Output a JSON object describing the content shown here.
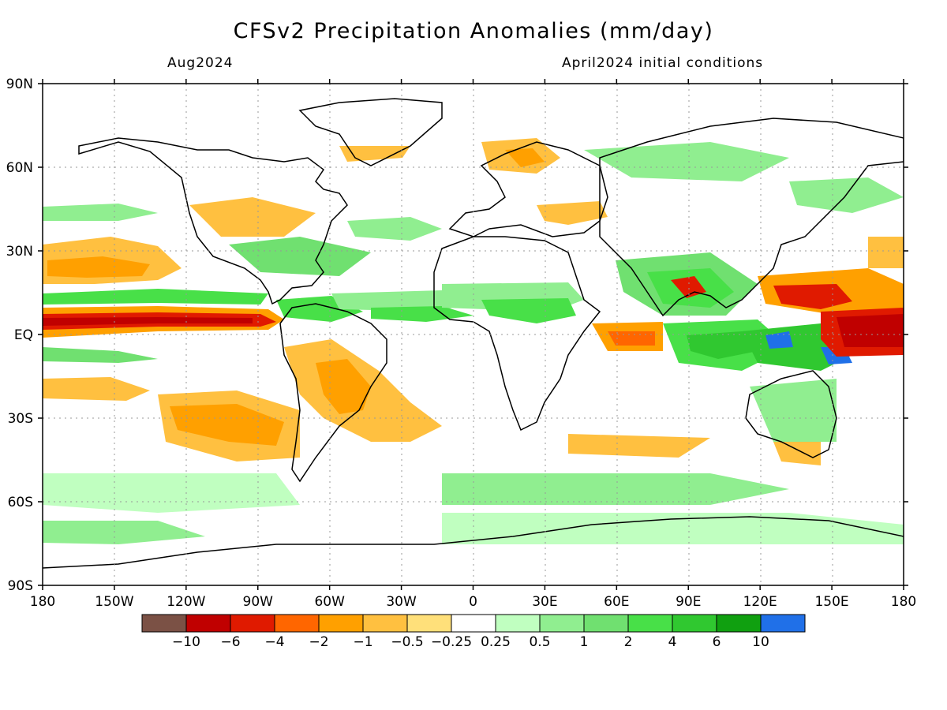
{
  "title": "CFSv2 Precipitation Anomalies (mm/day)",
  "subtitle_left": "Aug2024",
  "subtitle_right": "April2024 initial conditions",
  "lat_labels": [
    "90N",
    "60N",
    "30N",
    "EQ",
    "30S",
    "60S",
    "90S"
  ],
  "lon_labels": [
    "180",
    "150W",
    "120W",
    "90W",
    "60W",
    "30W",
    "0",
    "30E",
    "60E",
    "90E",
    "120E",
    "150E",
    "180"
  ],
  "colorbar": {
    "colors": [
      "#7b5145",
      "#c00000",
      "#e01a00",
      "#ff6600",
      "#ffa000",
      "#ffc040",
      "#ffe07a",
      "#ffffff",
      "#c0ffc0",
      "#90ee90",
      "#70e070",
      "#48e048",
      "#30c830",
      "#10a010",
      "#2070e8"
    ],
    "labels": [
      "−10",
      "−6",
      "−4",
      "−2",
      "−1",
      "−0.5",
      "−0.25",
      "0.25",
      "0.5",
      "1",
      "2",
      "4",
      "6",
      "10"
    ]
  }
}
